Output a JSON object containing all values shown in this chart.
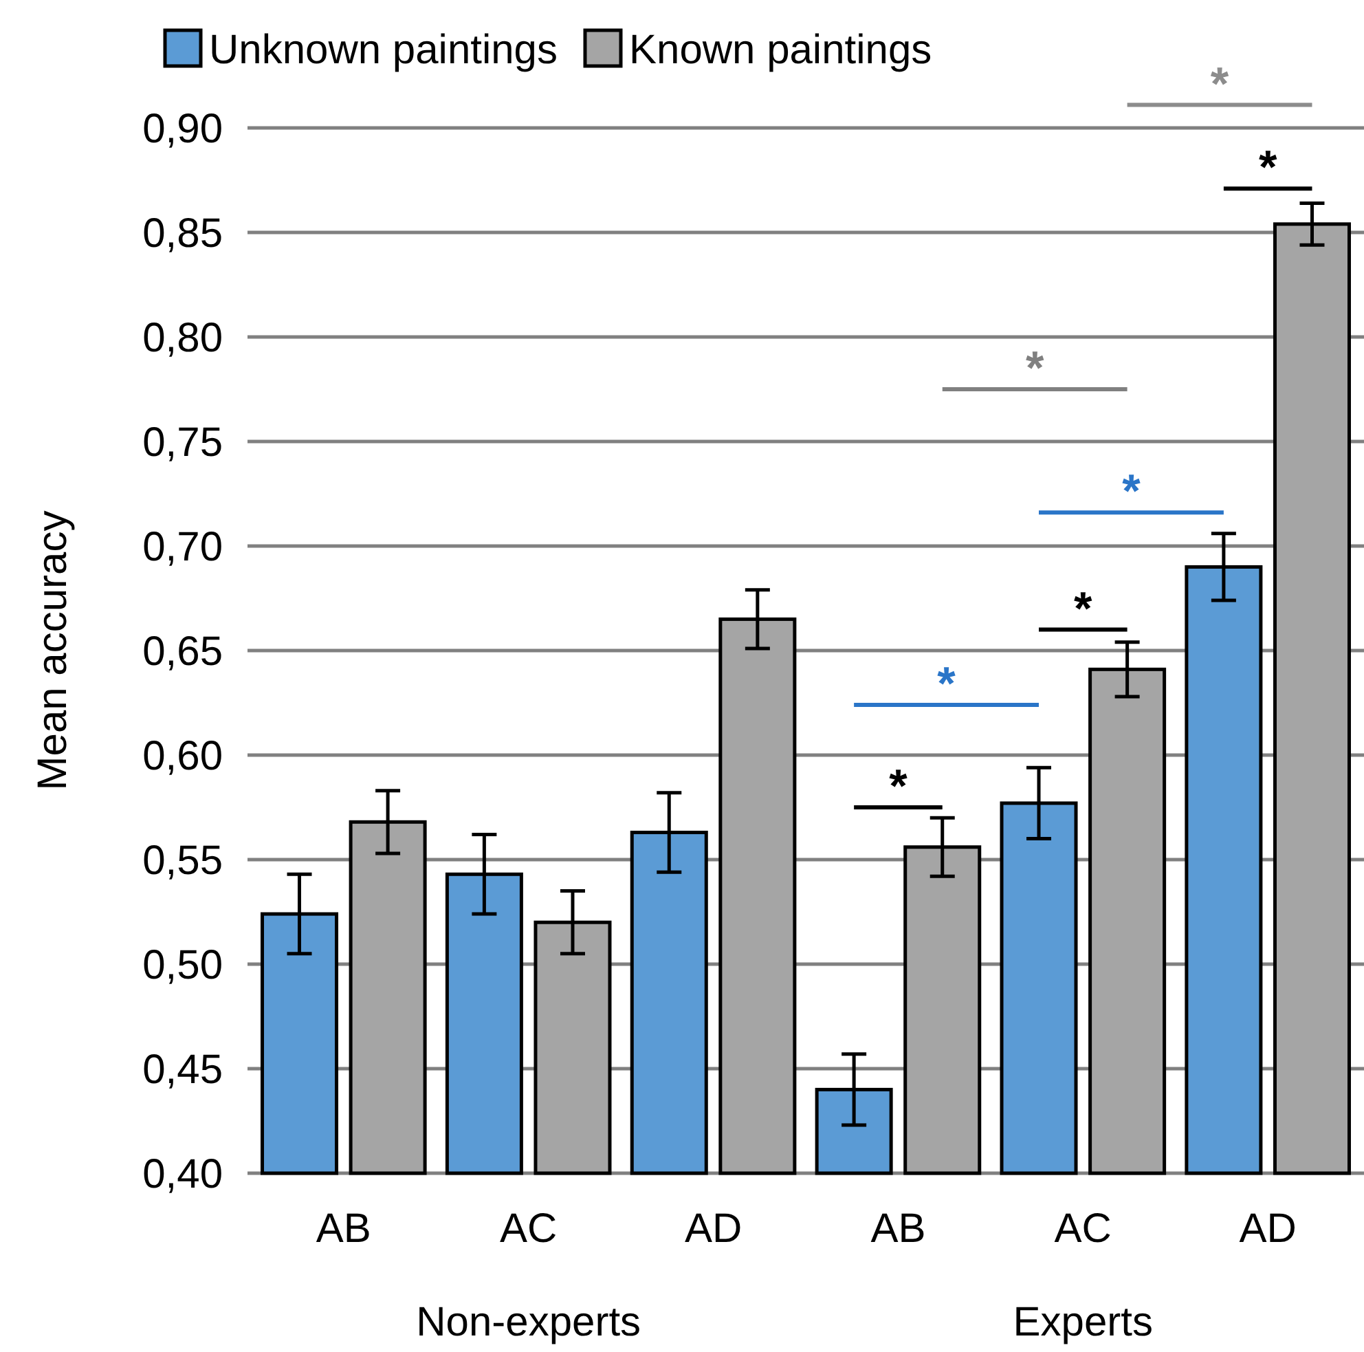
{
  "chart_data": {
    "type": "bar",
    "ylabel": "Mean accuracy",
    "categories": [
      "AB",
      "AC",
      "AD",
      "AB",
      "AC",
      "AD"
    ],
    "series": [
      {
        "name": "Unknown paintings",
        "color": "#5b9bd5",
        "values": [
          0.524,
          0.543,
          0.563,
          0.44,
          0.577,
          0.69
        ],
        "errors": [
          0.019,
          0.019,
          0.019,
          0.017,
          0.017,
          0.016
        ]
      },
      {
        "name": "Known paintings",
        "color": "#a5a5a5",
        "values": [
          0.568,
          0.52,
          0.665,
          0.556,
          0.641,
          0.854
        ],
        "errors": [
          0.015,
          0.015,
          0.014,
          0.014,
          0.013,
          0.01
        ]
      }
    ],
    "ylim": [
      0.4,
      0.9
    ],
    "yticks": [
      {
        "value": 0.4,
        "label": "0,40"
      },
      {
        "value": 0.45,
        "label": "0,45"
      },
      {
        "value": 0.5,
        "label": "0,50"
      },
      {
        "value": 0.55,
        "label": "0,55"
      },
      {
        "value": 0.6,
        "label": "0,60"
      },
      {
        "value": 0.65,
        "label": "0,65"
      },
      {
        "value": 0.7,
        "label": "0,70"
      },
      {
        "value": 0.75,
        "label": "0,75"
      },
      {
        "value": 0.8,
        "label": "0,80"
      },
      {
        "value": 0.85,
        "label": "0,85"
      },
      {
        "value": 0.9,
        "label": "0,90"
      }
    ],
    "grid": "y",
    "legend": "top left",
    "annotations": [
      "*",
      "*",
      "*",
      "*",
      "*",
      "*",
      "*",
      "Non-experts",
      "Experts"
    ]
  }
}
